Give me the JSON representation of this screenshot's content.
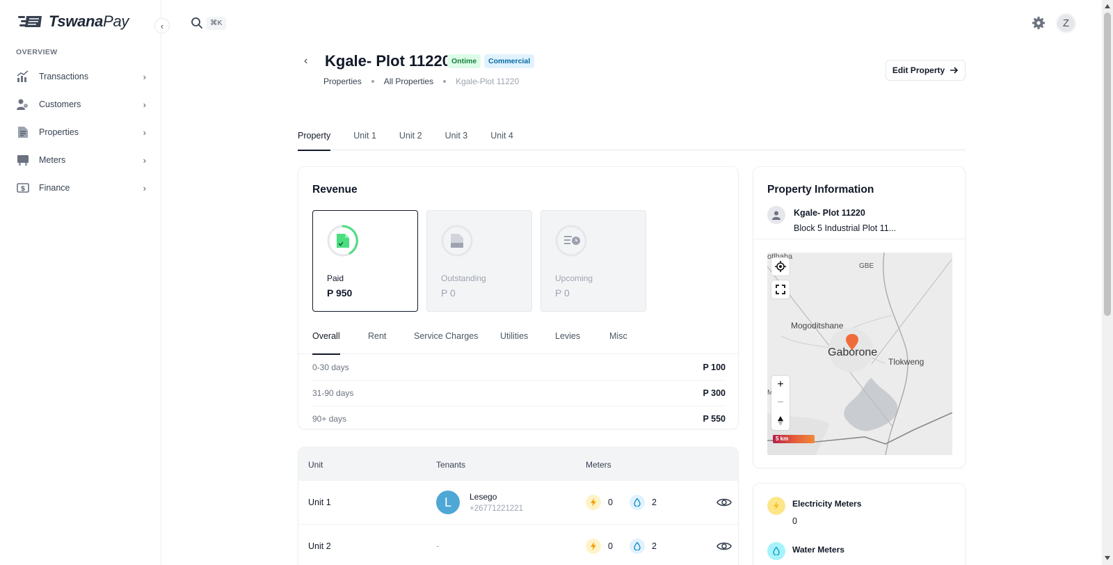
{
  "app": {
    "logo_text_bold": "Tswana",
    "logo_text_light": "Pay"
  },
  "sidebar": {
    "section_label": "OVERVIEW",
    "items": [
      {
        "label": "Transactions",
        "icon": "chart-up-icon"
      },
      {
        "label": "Customers",
        "icon": "users-icon"
      },
      {
        "label": "Properties",
        "icon": "document-icon"
      },
      {
        "label": "Meters",
        "icon": "meter-icon"
      },
      {
        "label": "Finance",
        "icon": "dollar-icon"
      }
    ]
  },
  "topbar": {
    "search_shortcut": "⌘K",
    "user_initial": "Z"
  },
  "header": {
    "title": "Kgale- Plot 11220",
    "badges": {
      "status": "Ontime",
      "type": "Commercial"
    },
    "breadcrumb": [
      "Properties",
      "All Properties",
      "Kgale-Plot 11220"
    ],
    "edit_label": "Edit Property"
  },
  "tabs": [
    "Property",
    "Unit 1",
    "Unit 2",
    "Unit 3",
    "Unit 4"
  ],
  "revenue": {
    "title": "Revenue",
    "stats": [
      {
        "label": "Paid",
        "value": "P 950"
      },
      {
        "label": "Outstanding",
        "value": "P 0"
      },
      {
        "label": "Upcoming",
        "value": "P 0"
      }
    ],
    "subtabs": [
      "Overall",
      "Rent",
      "Service Charges",
      "Utilities",
      "Levies",
      "Misc"
    ],
    "aging": [
      {
        "label": "0-30 days",
        "value": "P 100"
      },
      {
        "label": "31-90 days",
        "value": "P 300"
      },
      {
        "label": "90+ days",
        "value": "P 550"
      }
    ]
  },
  "units_table": {
    "headers": [
      "Unit",
      "Tenants",
      "Meters"
    ],
    "rows": [
      {
        "unit": "Unit 1",
        "tenant_initial": "L",
        "tenant_name": "Lesego",
        "tenant_phone": "+26771221221",
        "electricity": "0",
        "water": "2"
      },
      {
        "unit": "Unit 2",
        "tenant_empty": "-",
        "electricity": "0",
        "water": "2"
      }
    ]
  },
  "property_info": {
    "title": "Property Information",
    "name": "Kgale- Plot 11220",
    "address": "Block 5 Industrial Plot 11...",
    "map": {
      "labels": [
        "Mogoditshane",
        "Gaborone",
        "Tlokweng",
        "GBE",
        "otlhaba",
        "Mo"
      ],
      "scale_label": "5 km"
    }
  },
  "meters_summary": {
    "electricity_label": "Electricity Meters",
    "electricity_value": "0",
    "water_label": "Water Meters"
  },
  "colors": {
    "accent": "#111827",
    "ontime_bg": "#dcfce7",
    "commercial_bg": "#e0f2fe",
    "paid_green": "#4ade80",
    "map_marker": "#ef6c3a"
  }
}
